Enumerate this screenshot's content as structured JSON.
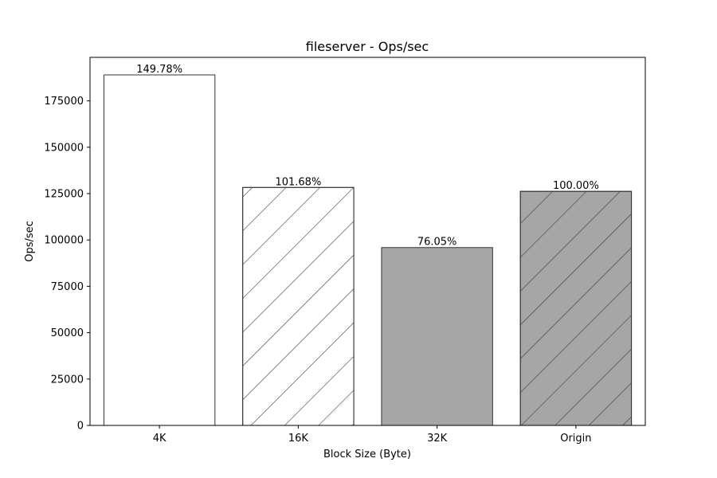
{
  "chart_data": {
    "type": "bar",
    "title": "fileserver - Ops/sec",
    "xlabel": "Block Size (Byte)",
    "ylabel": "Ops/sec",
    "categories": [
      "4K",
      "16K",
      "32K",
      "Origin"
    ],
    "values": [
      189000,
      128300,
      95900,
      126200
    ],
    "bar_labels": [
      "149.78%",
      "101.68%",
      "76.05%",
      "100.00%"
    ],
    "styles": [
      {
        "fill": "#ffffff",
        "hatch": false
      },
      {
        "fill": "#ffffff",
        "hatch": true
      },
      {
        "fill": "#a6a6a6",
        "hatch": false
      },
      {
        "fill": "#a6a6a6",
        "hatch": true
      }
    ],
    "ylim": [
      0,
      198450
    ],
    "yticks": [
      0,
      25000,
      50000,
      75000,
      100000,
      125000,
      150000,
      175000
    ],
    "grid": false,
    "legend": "none"
  }
}
